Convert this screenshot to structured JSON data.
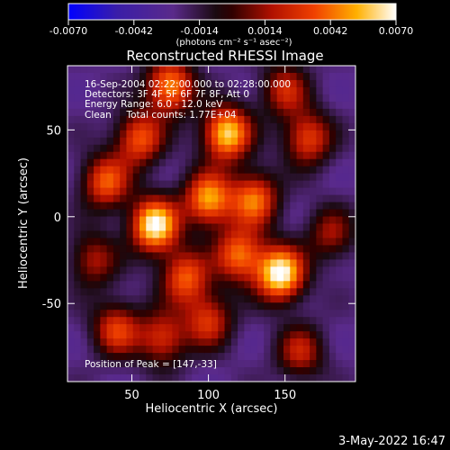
{
  "colorbar": {
    "ticks": [
      "-0.0070",
      "-0.0042",
      "-0.0014",
      "0.0014",
      "0.0042",
      "0.0070"
    ],
    "units": "(photons cm⁻² s⁻¹ asec⁻²)"
  },
  "chart_data": {
    "type": "heatmap",
    "title": "Reconstructed RHESSI Image",
    "xlabel": "Heliocentric X (arcsec)",
    "ylabel": "Heliocentric Y (arcsec)",
    "xlim": [
      8,
      196
    ],
    "ylim": [
      -95,
      87
    ],
    "xticks": [
      50,
      100,
      150
    ],
    "yticks": [
      50,
      0,
      -50
    ],
    "clim": [
      -0.007,
      0.007
    ],
    "colormap": "blue-purple-red-orange-yellow-white",
    "peak": [
      147,
      -33
    ],
    "annotations": [
      "16-Sep-2004 02:22:00.000 to 02:28:00.000",
      "Detectors: 3F 4F 5F 6F 7F 8F, Att 0",
      "Energy Range: 6.0 - 12.0 keV",
      "Clean     Total counts: 1.77E+04"
    ],
    "peak_label": "Position of Peak = [147,-33]",
    "sources": [
      {
        "x": 65,
        "y": -5,
        "value": 0.0068
      },
      {
        "x": 147,
        "y": -33,
        "value": 0.007
      },
      {
        "x": 112,
        "y": 48,
        "value": 0.006
      },
      {
        "x": 100,
        "y": 10,
        "value": 0.005
      },
      {
        "x": 75,
        "y": 75,
        "value": 0.0048
      },
      {
        "x": 130,
        "y": 10,
        "value": 0.004
      },
      {
        "x": 120,
        "y": -22,
        "value": 0.004
      },
      {
        "x": 33,
        "y": 20,
        "value": 0.0035
      },
      {
        "x": 55,
        "y": 45,
        "value": 0.0035
      },
      {
        "x": 165,
        "y": 45,
        "value": 0.003
      },
      {
        "x": 85,
        "y": -35,
        "value": 0.0035
      },
      {
        "x": 100,
        "y": -60,
        "value": 0.0025
      },
      {
        "x": 40,
        "y": -65,
        "value": 0.0028
      },
      {
        "x": 70,
        "y": -70,
        "value": 0.0025
      },
      {
        "x": 150,
        "y": 73,
        "value": 0.002
      },
      {
        "x": 160,
        "y": -78,
        "value": 0.0018
      },
      {
        "x": 180,
        "y": -10,
        "value": 0.0012
      },
      {
        "x": 25,
        "y": -25,
        "value": 0.0015
      }
    ]
  },
  "footer_date": "3-May-2022 16:47"
}
